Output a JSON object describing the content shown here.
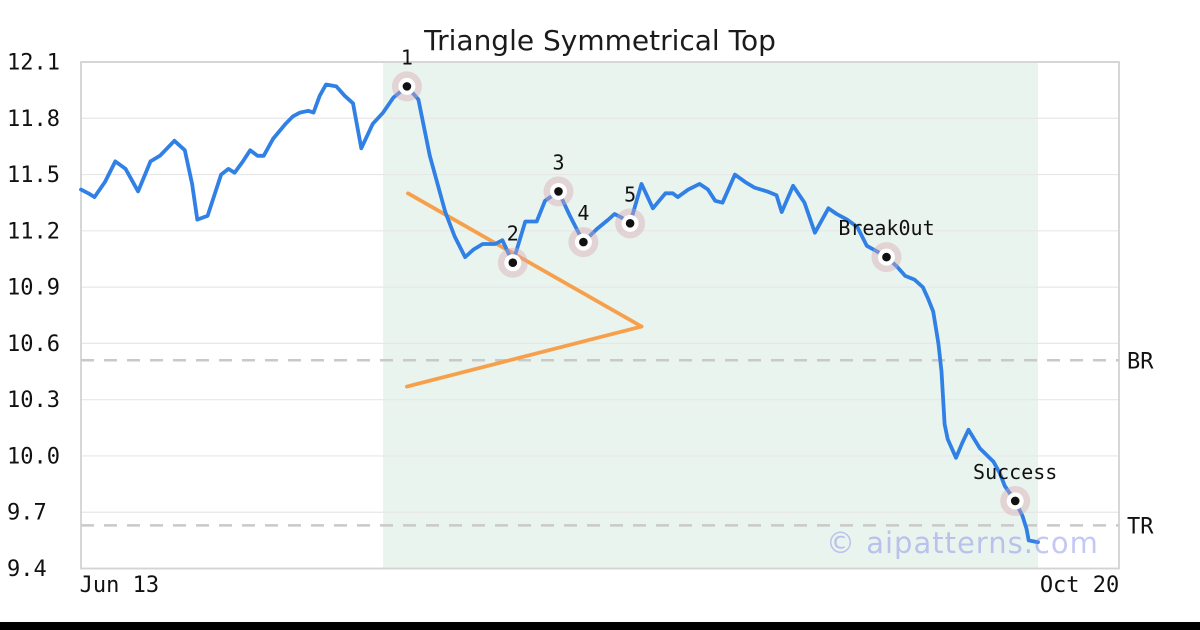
{
  "chart_data": {
    "type": "line",
    "title": "Triangle Symmetrical Top",
    "watermark": "© aipatterns.com",
    "grid": true,
    "legend": "none",
    "ylim": [
      9.4,
      12.1
    ],
    "y_axis": {
      "tick_labels": [
        "12.1",
        "11.8",
        "11.5",
        "11.2",
        "10.9",
        "10.6",
        "10.3",
        "10.0",
        "9.7",
        "9.4"
      ],
      "tick_values": [
        12.1,
        11.8,
        11.5,
        11.2,
        10.9,
        10.6,
        10.3,
        10.0,
        9.7,
        9.4
      ]
    },
    "x_axis": {
      "ticks": [
        {
          "label": "Jun 13",
          "x": 0.037
        },
        {
          "label": "Oct 20",
          "x": 0.962
        }
      ]
    },
    "shaded_region": {
      "x_start": 0.291,
      "x_end": 0.922,
      "color": "#EAF4EF"
    },
    "series": [
      {
        "name": "price",
        "color": "#3080E5",
        "points": [
          [
            0.0,
            11.42
          ],
          [
            0.007,
            11.4
          ],
          [
            0.013,
            11.38
          ],
          [
            0.023,
            11.46
          ],
          [
            0.033,
            11.57
          ],
          [
            0.043,
            11.53
          ],
          [
            0.055,
            11.41
          ],
          [
            0.067,
            11.57
          ],
          [
            0.076,
            11.6
          ],
          [
            0.09,
            11.68
          ],
          [
            0.1,
            11.63
          ],
          [
            0.107,
            11.45
          ],
          [
            0.112,
            11.26
          ],
          [
            0.122,
            11.28
          ],
          [
            0.135,
            11.5
          ],
          [
            0.142,
            11.53
          ],
          [
            0.148,
            11.51
          ],
          [
            0.156,
            11.57
          ],
          [
            0.163,
            11.63
          ],
          [
            0.17,
            11.6
          ],
          [
            0.176,
            11.6
          ],
          [
            0.185,
            11.69
          ],
          [
            0.197,
            11.77
          ],
          [
            0.204,
            11.81
          ],
          [
            0.211,
            11.83
          ],
          [
            0.219,
            11.84
          ],
          [
            0.224,
            11.83
          ],
          [
            0.23,
            11.92
          ],
          [
            0.236,
            11.98
          ],
          [
            0.246,
            11.97
          ],
          [
            0.254,
            11.92
          ],
          [
            0.262,
            11.88
          ],
          [
            0.27,
            11.64
          ],
          [
            0.281,
            11.77
          ],
          [
            0.291,
            11.83
          ],
          [
            0.301,
            11.91
          ],
          [
            0.314,
            11.97
          ],
          [
            0.325,
            11.9
          ],
          [
            0.336,
            11.6
          ],
          [
            0.351,
            11.3
          ],
          [
            0.36,
            11.17
          ],
          [
            0.37,
            11.06
          ],
          [
            0.378,
            11.1
          ],
          [
            0.387,
            11.13
          ],
          [
            0.399,
            11.13
          ],
          [
            0.406,
            11.15
          ],
          [
            0.416,
            11.03
          ],
          [
            0.428,
            11.25
          ],
          [
            0.439,
            11.25
          ],
          [
            0.447,
            11.36
          ],
          [
            0.46,
            11.41
          ],
          [
            0.471,
            11.28
          ],
          [
            0.484,
            11.14
          ],
          [
            0.497,
            11.21
          ],
          [
            0.508,
            11.26
          ],
          [
            0.514,
            11.29
          ],
          [
            0.521,
            11.27
          ],
          [
            0.529,
            11.24
          ],
          [
            0.54,
            11.45
          ],
          [
            0.551,
            11.32
          ],
          [
            0.563,
            11.4
          ],
          [
            0.57,
            11.4
          ],
          [
            0.575,
            11.38
          ],
          [
            0.585,
            11.42
          ],
          [
            0.596,
            11.45
          ],
          [
            0.604,
            11.42
          ],
          [
            0.611,
            11.36
          ],
          [
            0.618,
            11.35
          ],
          [
            0.63,
            11.5
          ],
          [
            0.64,
            11.46
          ],
          [
            0.649,
            11.43
          ],
          [
            0.661,
            11.41
          ],
          [
            0.67,
            11.39
          ],
          [
            0.675,
            11.3
          ],
          [
            0.686,
            11.44
          ],
          [
            0.697,
            11.35
          ],
          [
            0.707,
            11.19
          ],
          [
            0.72,
            11.32
          ],
          [
            0.728,
            11.29
          ],
          [
            0.738,
            11.26
          ],
          [
            0.748,
            11.22
          ],
          [
            0.757,
            11.12
          ],
          [
            0.767,
            11.09
          ],
          [
            0.776,
            11.06
          ],
          [
            0.786,
            11.01
          ],
          [
            0.794,
            10.96
          ],
          [
            0.803,
            10.94
          ],
          [
            0.811,
            10.9
          ],
          [
            0.816,
            10.84
          ],
          [
            0.821,
            10.77
          ],
          [
            0.826,
            10.6
          ],
          [
            0.829,
            10.45
          ],
          [
            0.832,
            10.17
          ],
          [
            0.835,
            10.09
          ],
          [
            0.843,
            9.99
          ],
          [
            0.849,
            10.07
          ],
          [
            0.855,
            10.14
          ],
          [
            0.866,
            10.04
          ],
          [
            0.879,
            9.97
          ],
          [
            0.885,
            9.91
          ],
          [
            0.89,
            9.84
          ],
          [
            0.9,
            9.76
          ],
          [
            0.907,
            9.68
          ],
          [
            0.911,
            9.61
          ],
          [
            0.913,
            9.55
          ],
          [
            0.922,
            9.54
          ]
        ]
      }
    ],
    "pattern_points": [
      {
        "label": "1",
        "x": 0.314,
        "y": 11.97
      },
      {
        "label": "2",
        "x": 0.416,
        "y": 11.03
      },
      {
        "label": "3",
        "x": 0.46,
        "y": 11.41
      },
      {
        "label": "4",
        "x": 0.484,
        "y": 11.14
      },
      {
        "label": "5",
        "x": 0.529,
        "y": 11.24
      },
      {
        "label": "Break0ut",
        "x": 0.776,
        "y": 11.06
      },
      {
        "label": "Success",
        "x": 0.9,
        "y": 9.76
      }
    ],
    "trendlines": [
      {
        "name": "upper-triangle-line",
        "color": "#F7A04B",
        "points": [
          [
            0.315,
            11.4
          ],
          [
            0.54,
            10.69
          ]
        ]
      },
      {
        "name": "lower-triangle-line",
        "color": "#F7A04B",
        "points": [
          [
            0.314,
            10.37
          ],
          [
            0.54,
            10.69
          ]
        ]
      }
    ],
    "reference_lines": [
      {
        "label": "BR",
        "y": 10.51
      },
      {
        "label": "TR",
        "y": 9.63
      }
    ],
    "colors": {
      "line": "#3080E5",
      "trendline": "#F7A04B",
      "shade": "#EAF4EF",
      "grid": "#E7E7E7",
      "border": "#D3D3D3",
      "dashed": "#C9C9C9",
      "text": "#111111",
      "marker_halo": "rgba(214,166,176,0.42)",
      "marker_dot": "#111111",
      "watermark": "rgba(124,132,228,0.45)"
    }
  }
}
